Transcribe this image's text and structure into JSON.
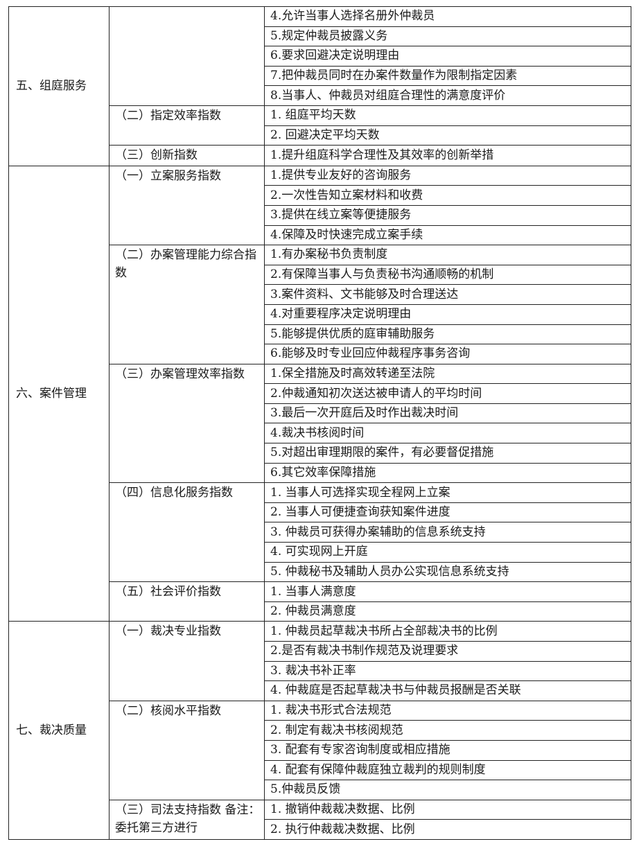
{
  "sections": [
    {
      "title": "五、组庭服务",
      "groups": [
        {
          "title": "",
          "items": [
            "4.允许当事人选择名册外仲裁员",
            "5.规定仲裁员披露义务",
            "6.要求回避决定说明理由",
            "7.把仲裁员同时在办案件数量作为限制指定因素",
            "8.当事人、仲裁员对组庭合理性的满意度评价"
          ]
        },
        {
          "title": "（二）指定效率指数",
          "items": [
            "1. 组庭平均天数",
            "2. 回避决定平均天数"
          ]
        },
        {
          "title": "（三）创新指数",
          "items": [
            "1.提升组庭科学合理性及其效率的创新举措"
          ]
        }
      ]
    },
    {
      "title": "六、案件管理",
      "groups": [
        {
          "title": "（一）立案服务指数",
          "items": [
            "1.提供专业友好的咨询服务",
            "2.一次性告知立案材料和收费",
            "3.提供在线立案等便捷服务",
            "4.保障及时快速完成立案手续"
          ]
        },
        {
          "title": "（二）办案管理能力综合指数",
          "items": [
            "1.有办案秘书负责制度",
            "2.有保障当事人与负责秘书沟通顺畅的机制",
            "3.案件资料、文书能够及时合理送达",
            "4.对重要程序决定说明理由",
            "5.能够提供优质的庭审辅助服务",
            "6.能够及时专业回应仲裁程序事务咨询"
          ]
        },
        {
          "title": "（三）办案管理效率指数",
          "items": [
            "1.保全措施及时高效转递至法院",
            "2.仲裁通知初次送达被申请人的平均时间",
            "3.最后一次开庭后及时作出裁决时间",
            "4.裁决书核阅时间",
            "5.对超出审理期限的案件，有必要督促措施",
            "6.其它效率保障措施"
          ]
        },
        {
          "title": "（四）信息化服务指数",
          "items": [
            "1. 当事人可选择实现全程网上立案",
            "2. 当事人可便捷查询获知案件进度",
            "3. 仲裁员可获得办案辅助的信息系统支持",
            "4. 可实现网上开庭",
            "5. 仲裁秘书及辅助人员办公实现信息系统支持"
          ]
        },
        {
          "title": "（五）社会评价指数",
          "items": [
            "1. 当事人满意度",
            "2. 仲裁员满意度"
          ]
        }
      ]
    },
    {
      "title": "七、裁决质量",
      "groups": [
        {
          "title": "（一）裁决专业指数",
          "items": [
            "1. 仲裁员起草裁决书所占全部裁决书的比例",
            "2.是否有裁决书制作规范及说理要求",
            "3. 裁决书补正率",
            "4. 仲裁庭是否起草裁决书与仲裁员报酬是否关联"
          ]
        },
        {
          "title": "（二）核阅水平指数",
          "items": [
            "1. 裁决书形式合法规范",
            "2. 制定有裁决书核阅规范",
            "3. 配套有专家咨询制度或相应措施",
            "4. 配套有保障仲裁庭独立裁判的规则制度",
            "5.仲裁员反馈"
          ]
        },
        {
          "title": "（三）司法支持指数 备注：委托第三方进行",
          "items": [
            "1. 撤销仲裁裁决数据、比例",
            "2. 执行仲裁裁决数据、比例"
          ]
        }
      ]
    }
  ]
}
